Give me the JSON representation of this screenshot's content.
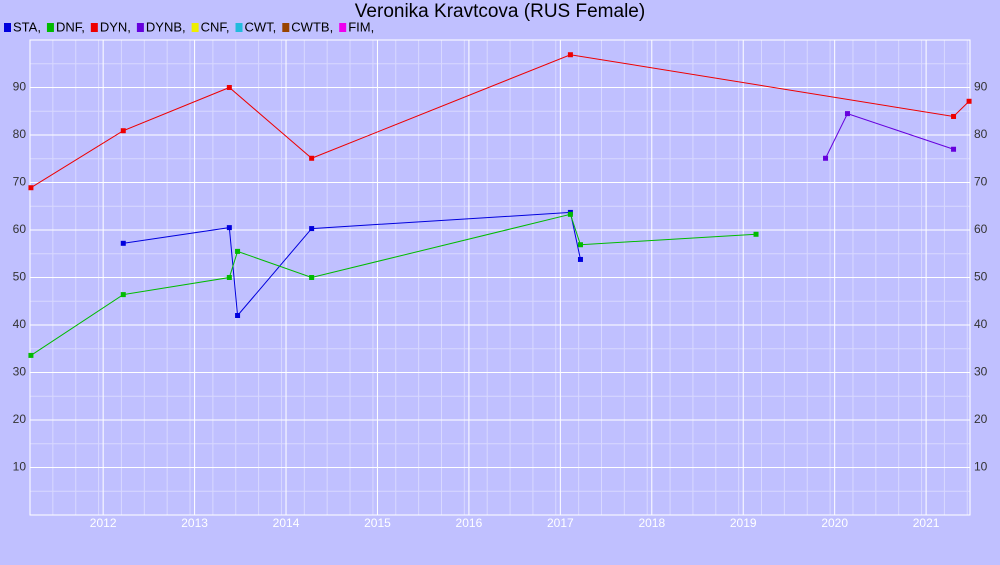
{
  "chart_data": {
    "type": "line",
    "title": "Veronika Kravtcova (RUS Female)",
    "xlim": [
      2011.2,
      2021.48
    ],
    "xticks": [
      2012,
      2013,
      2014,
      2015,
      2016,
      2017,
      2018,
      2019,
      2020,
      2021
    ],
    "ylim": [
      0,
      100
    ],
    "yticks": [
      10,
      20,
      30,
      40,
      50,
      60,
      70,
      80,
      90
    ],
    "grid": true,
    "series": [
      {
        "name": "STA,",
        "color": "#0000dd",
        "x": [
          2012.22,
          2013.38,
          2013.47,
          2014.28,
          2017.11,
          2017.22
        ],
        "values": [
          57.2,
          60.5,
          42.0,
          60.3,
          63.7,
          53.8
        ]
      },
      {
        "name": "DNF,",
        "color": "#00bb00",
        "x": [
          2011.21,
          2012.22,
          2013.38,
          2013.47,
          2014.28,
          2017.11,
          2017.22,
          2019.14
        ],
        "values": [
          33.6,
          46.4,
          50.0,
          55.5,
          50.0,
          63.3,
          56.9,
          59.1
        ]
      },
      {
        "name": "DYN,",
        "color": "#ee0000",
        "x": [
          2011.21,
          2012.22,
          2013.38,
          2014.28,
          2017.11,
          2021.3,
          2021.47
        ],
        "values": [
          68.9,
          80.9,
          90.0,
          75.1,
          96.9,
          83.9,
          87.1
        ]
      },
      {
        "name": "DYNB,",
        "color": "#6600dd",
        "x": [
          2019.9,
          2020.14,
          2021.3
        ],
        "values": [
          75.1,
          84.5,
          77.0
        ]
      },
      {
        "name": "CNF,",
        "color": "#eeee00",
        "x": [],
        "values": []
      },
      {
        "name": "CWT,",
        "color": "#22bbdd",
        "x": [],
        "values": []
      },
      {
        "name": "CWTB,",
        "color": "#994400",
        "x": [],
        "values": []
      },
      {
        "name": "FIM,",
        "color": "#ee00ee",
        "x": [],
        "values": []
      }
    ]
  }
}
